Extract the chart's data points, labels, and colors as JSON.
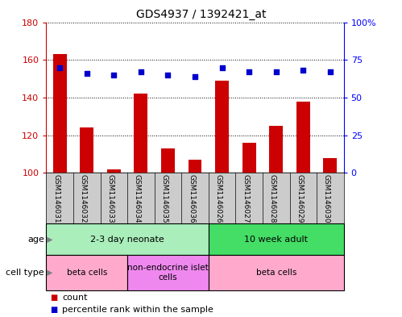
{
  "title": "GDS4937 / 1392421_at",
  "samples": [
    "GSM1146031",
    "GSM1146032",
    "GSM1146033",
    "GSM1146034",
    "GSM1146035",
    "GSM1146036",
    "GSM1146026",
    "GSM1146027",
    "GSM1146028",
    "GSM1146029",
    "GSM1146030"
  ],
  "counts": [
    163,
    124,
    102,
    142,
    113,
    107,
    149,
    116,
    125,
    138,
    108
  ],
  "percentile_ranks": [
    70,
    66,
    65,
    67,
    65,
    64,
    70,
    67,
    67,
    68,
    67
  ],
  "ymin": 100,
  "ymax": 180,
  "y2min": 0,
  "y2max": 100,
  "yticks": [
    100,
    120,
    140,
    160,
    180
  ],
  "y2ticks": [
    0,
    25,
    50,
    75,
    100
  ],
  "y2ticklabels": [
    "0",
    "25",
    "50",
    "75",
    "100%"
  ],
  "bar_color": "#cc0000",
  "dot_color": "#0000cc",
  "plot_bg": "#ffffff",
  "tick_area_bg": "#cccccc",
  "groups": [
    {
      "label": "2-3 day neonate",
      "start": 0,
      "end": 6,
      "color": "#aaeebb"
    },
    {
      "label": "10 week adult",
      "start": 6,
      "end": 11,
      "color": "#44dd66"
    }
  ],
  "cell_types": [
    {
      "label": "beta cells",
      "start": 0,
      "end": 3,
      "color": "#ffaacc"
    },
    {
      "label": "non-endocrine islet\ncells",
      "start": 3,
      "end": 6,
      "color": "#ee88ee"
    },
    {
      "label": "beta cells",
      "start": 6,
      "end": 11,
      "color": "#ffaacc"
    }
  ],
  "legend_items": [
    {
      "color": "#cc0000",
      "label": "count"
    },
    {
      "color": "#0000cc",
      "label": "percentile rank within the sample"
    }
  ],
  "title_fontsize": 10,
  "bar_width": 0.5
}
